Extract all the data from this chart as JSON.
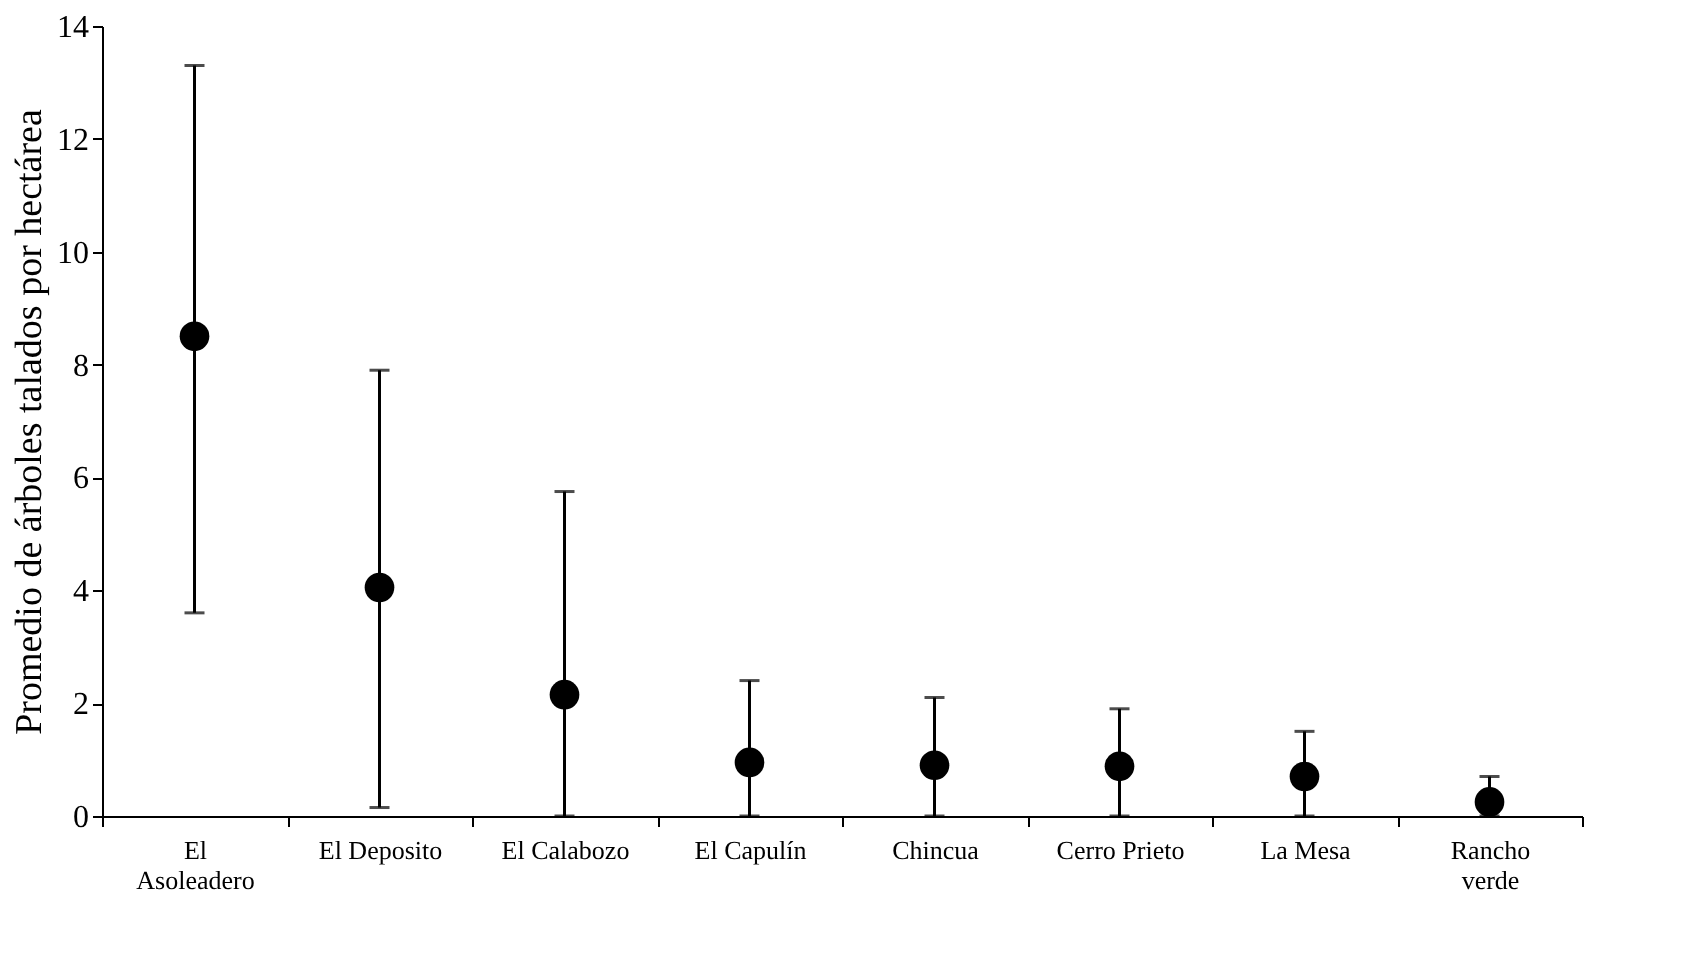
{
  "chart_data": {
    "type": "scatter",
    "ylabel": "Promedio de árboles talados por hectárea",
    "categories": [
      "El\nAsoleadero",
      "El Deposito",
      "El Calabozo",
      "El Capulín",
      "Chincua",
      "Cerro Prieto",
      "La Mesa",
      "Rancho\nverde"
    ],
    "series": [
      {
        "color": "#000000",
        "values": [
          8.5,
          4.05,
          2.15,
          0.95,
          0.9,
          0.88,
          0.7,
          0.25
        ],
        "errors": [
          [
            3.6,
            13.3
          ],
          [
            0.15,
            7.9
          ],
          [
            0,
            5.75
          ],
          [
            0,
            2.4
          ],
          [
            0,
            2.1
          ],
          [
            0,
            1.9
          ],
          [
            0,
            1.5
          ],
          [
            0,
            0.7
          ]
        ]
      }
    ],
    "ylim": [
      0,
      14
    ],
    "yticks": [
      0,
      2,
      4,
      6,
      8,
      10,
      12,
      14
    ],
    "grid": false,
    "marker": "circle"
  }
}
